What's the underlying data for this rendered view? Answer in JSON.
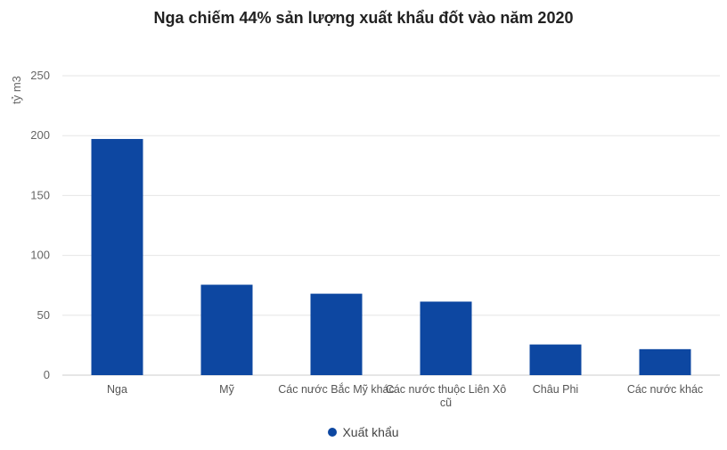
{
  "chart_data": {
    "type": "bar",
    "title": "Nga chiếm 44% sản lượng xuất khẩu đốt vào năm 2020",
    "ylabel": "tỷ m3",
    "xlabel": "",
    "ylim": [
      0,
      250
    ],
    "yticks": [
      0,
      50,
      100,
      150,
      200,
      250
    ],
    "categories": [
      "Nga",
      "Mỹ",
      "Các nước Bắc Mỹ khác",
      "Các nước thuộc Liên Xô cũ",
      "Châu Phi",
      "Các nước khác"
    ],
    "series": [
      {
        "name": "Xuất khẩu",
        "values": [
          197.2,
          75.5,
          68,
          61.4,
          25.6,
          21.7
        ],
        "color": "#0d47a1"
      }
    ],
    "grid": true,
    "legend_position": "bottom-center"
  }
}
